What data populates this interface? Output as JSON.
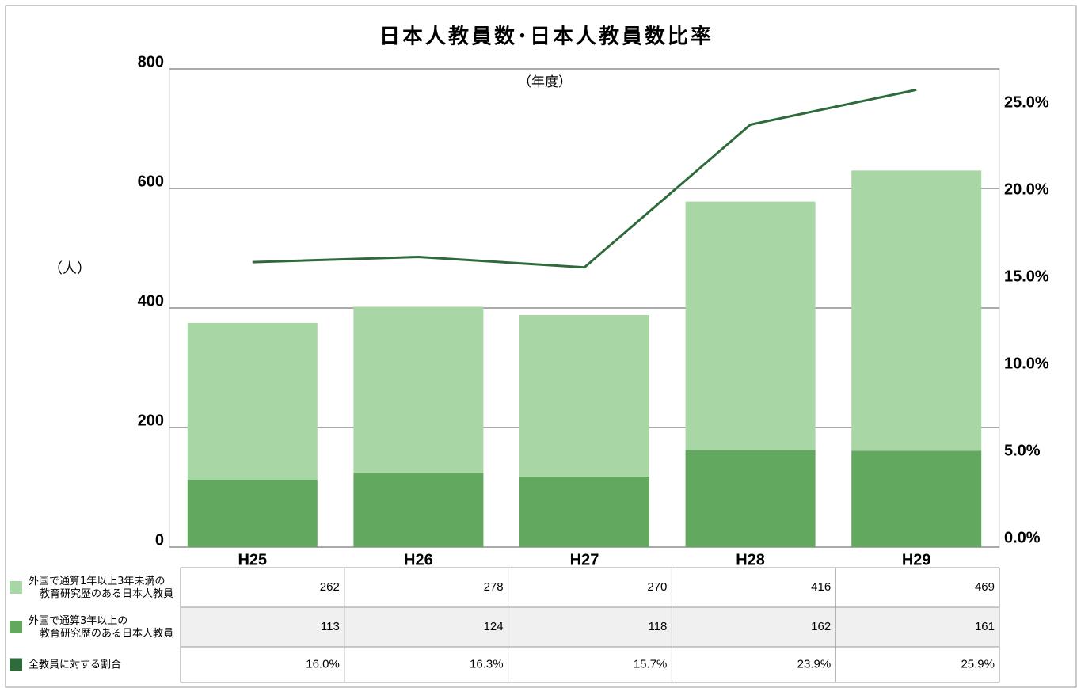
{
  "chart_data": {
    "type": "bar",
    "title": "日本人教員数･日本人教員数比率",
    "y_label": "（人）",
    "annotation": "（年度）",
    "categories": [
      "H25",
      "H26",
      "H27",
      "H28",
      "H29"
    ],
    "stacked": true,
    "series": [
      {
        "name": "外国で通算3年以上の\n教育研究歴のある日本人教員",
        "color": "#62a85e",
        "values": [
          113,
          124,
          118,
          162,
          161
        ]
      },
      {
        "name": "外国で通算1年以上3年未満の\n教育研究歴のある日本人教員",
        "color": "#a9d6a5",
        "values": [
          262,
          278,
          270,
          416,
          469
        ]
      },
      {
        "name": "全教員に対する割合",
        "color": "#2e6b3a",
        "type": "line",
        "axis": "y2",
        "values": [
          16.0,
          16.3,
          15.7,
          23.9,
          25.9
        ],
        "value_labels": [
          "16.0%",
          "16.3%",
          "15.7%",
          "23.9%",
          "25.9%"
        ]
      }
    ],
    "ylim": [
      0,
      800
    ],
    "yticks": [
      0,
      200,
      400,
      600,
      800
    ],
    "y2lim": [
      0,
      27.1
    ],
    "y2ticks": [
      {
        "value": 0,
        "label": "0.0%"
      },
      {
        "value": 5,
        "label": "5.0%"
      },
      {
        "value": 10,
        "label": "10.0%"
      },
      {
        "value": 15,
        "label": "15.0%"
      },
      {
        "value": 20,
        "label": "20.0%"
      },
      {
        "value": 25,
        "label": "25.0%"
      }
    ],
    "grid": true
  }
}
